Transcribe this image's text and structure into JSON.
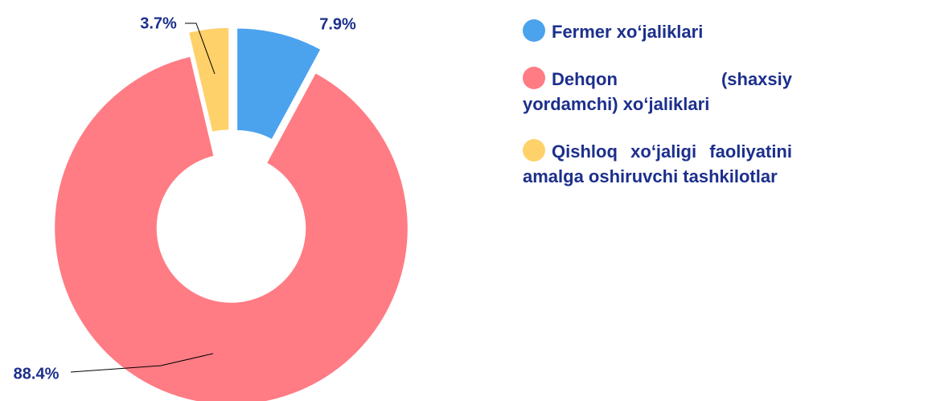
{
  "chart_data": {
    "type": "donut",
    "series": [
      {
        "name": "Fermer xo‘jaliklari",
        "color": "#4ba3ee",
        "value": 7.9,
        "value_label": "7.9%"
      },
      {
        "name": "Dehqon (shaxsiy yordamchi) xo‘jaliklari",
        "color": "#ff7c84",
        "value": 88.4,
        "value_label": "88.4%"
      },
      {
        "name": "Qishloq xo‘jaligi faoliyatini amalga oshiruvchi tashkilotlar",
        "color": "#ffd16a",
        "value": 3.7,
        "value_label": "3.7%"
      }
    ],
    "explode": [
      true,
      false,
      true
    ],
    "legend": "right"
  }
}
